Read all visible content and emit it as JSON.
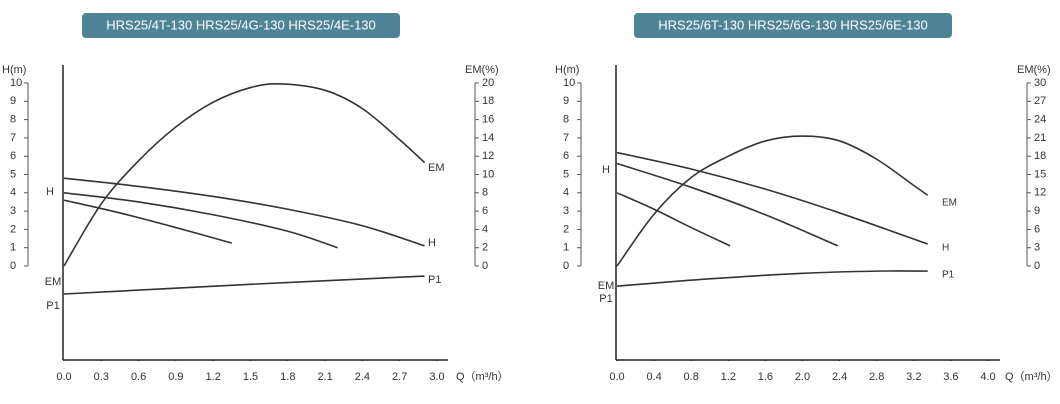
{
  "chart_data": [
    {
      "type": "line",
      "title": "HRS25/4T-130 HRS25/4G-130 HRS25/4E-130",
      "ylabel": "H(m)",
      "y2label": "EM(%)",
      "xlabel": "Q（m³/h）",
      "xlim": [
        0,
        3.0
      ],
      "xticks": [
        {
          "value": 0,
          "label": "0.0"
        },
        0.3,
        0.6,
        0.9,
        1.2,
        1.5,
        1.8,
        2.1,
        2.4,
        2.7,
        {
          "value": 3,
          "label": "3.0"
        }
      ],
      "ylim": [
        0,
        10
      ],
      "yticks": [
        0,
        1,
        2,
        3,
        4,
        5,
        6,
        7,
        8,
        9,
        10
      ],
      "y2lim": [
        0,
        20
      ],
      "y2ticks": [
        0,
        2,
        4,
        6,
        8,
        10,
        12,
        14,
        16,
        18,
        20
      ],
      "curve_labels_left": [
        "H",
        "EM",
        "P1"
      ],
      "curve_labels_right": [
        "EM",
        "H",
        "P1"
      ],
      "series": [
        {
          "color": "#333333",
          "x": [
            0,
            0.6,
            1.2,
            1.8,
            2.4,
            2.9
          ],
          "values": [
            4.8,
            4.35,
            3.8,
            3.1,
            2.2,
            1.1
          ]
        },
        {
          "color": "#333333",
          "x": [
            0,
            0.6,
            1.2,
            1.8,
            2.2
          ],
          "values": [
            4.0,
            3.5,
            2.8,
            1.9,
            1.0
          ]
        },
        {
          "color": "#333333",
          "x": [
            0,
            0.45,
            0.9,
            1.35
          ],
          "values": [
            3.6,
            2.9,
            2.1,
            1.25
          ]
        },
        {
          "color": "#333333",
          "axis": "y2",
          "x": [
            0,
            0.3,
            0.6,
            0.9,
            1.2,
            1.5,
            1.75,
            2.1,
            2.4,
            2.7,
            2.9
          ],
          "values": [
            0,
            6.8,
            11.5,
            15.2,
            17.9,
            19.5,
            19.9,
            19.2,
            17.2,
            13.8,
            11.3
          ]
        },
        {
          "color": "#333333",
          "x": [
            0,
            1.5,
            2.9
          ],
          "values": [
            -1.53,
            -1.0,
            -0.55
          ]
        }
      ]
    },
    {
      "type": "line",
      "title": "HRS25/6T-130 HRS25/6G-130 HRS25/6E-130",
      "ylabel": "H(m)",
      "y2label": "EM(%)",
      "xlabel": "Q（m³/h）",
      "xlim": [
        0,
        4.0
      ],
      "xticks": [
        {
          "value": 0,
          "label": "0.0"
        },
        0.4,
        0.8,
        1.2,
        1.6,
        {
          "value": 2,
          "label": "2.0"
        },
        2.4,
        2.8,
        3.2,
        3.6,
        {
          "value": 4,
          "label": "4.0"
        }
      ],
      "ylim": [
        0,
        10
      ],
      "yticks": [
        0,
        1,
        2,
        3,
        4,
        5,
        6,
        7,
        8,
        9,
        10
      ],
      "y2lim": [
        0,
        30
      ],
      "y2ticks": [
        0,
        3,
        6,
        9,
        12,
        15,
        18,
        21,
        24,
        27,
        30
      ],
      "curve_labels_left": [
        "H",
        "EM",
        "P1"
      ],
      "curve_labels_right": [
        "EM",
        "H",
        "P1"
      ],
      "series": [
        {
          "color": "#333333",
          "x": [
            0,
            0.8,
            1.6,
            2.4,
            3.35
          ],
          "values": [
            6.2,
            5.3,
            4.2,
            2.9,
            1.2
          ]
        },
        {
          "color": "#333333",
          "x": [
            0,
            0.8,
            1.6,
            2.38
          ],
          "values": [
            5.6,
            4.3,
            2.8,
            1.1
          ]
        },
        {
          "color": "#333333",
          "x": [
            0,
            0.4,
            0.8,
            1.22
          ],
          "values": [
            4.0,
            3.1,
            2.1,
            1.1
          ]
        },
        {
          "color": "#333333",
          "axis": "y2",
          "x": [
            0,
            0.4,
            0.8,
            1.2,
            1.6,
            2.0,
            2.4,
            2.8,
            3.2,
            3.35
          ],
          "values": [
            0,
            8.5,
            14.5,
            18,
            20.5,
            21.3,
            20.5,
            17.5,
            13.2,
            11.6
          ]
        },
        {
          "color": "#333333",
          "x": [
            0,
            1,
            2,
            2.8,
            3.35
          ],
          "values": [
            -1.1,
            -0.7,
            -0.4,
            -0.28,
            -0.28
          ]
        }
      ]
    }
  ]
}
